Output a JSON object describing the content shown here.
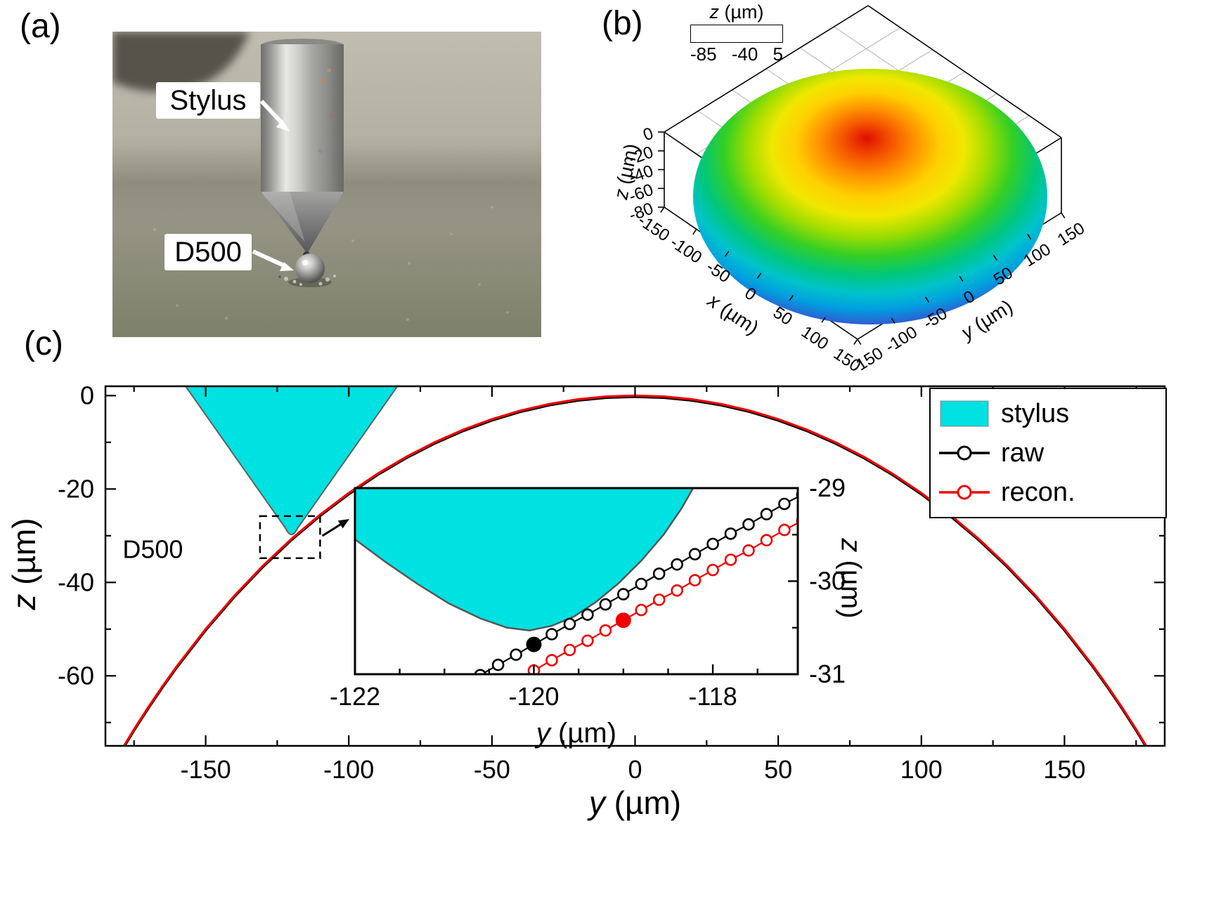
{
  "panels": {
    "a": {
      "label": "(a)",
      "annotations": {
        "stylus": "Stylus",
        "droplet": "D500"
      }
    },
    "b": {
      "label": "(b)",
      "colorbar": {
        "title_var": "z",
        "title_unit": "(µm)",
        "ticks": [
          -85,
          -40,
          5
        ]
      },
      "axes": {
        "z": {
          "var": "z",
          "unit": "(µm)",
          "ticks": [
            0,
            -20,
            -40,
            -60,
            -80
          ]
        },
        "x": {
          "var": "x",
          "unit": "(µm)",
          "ticks": [
            -150,
            -100,
            -50,
            0,
            50,
            100,
            150
          ]
        },
        "y": {
          "var": "y",
          "unit": "(µm)",
          "ticks": [
            -150,
            -100,
            -50,
            0,
            50,
            100,
            150
          ]
        }
      }
    },
    "c": {
      "label": "(c)",
      "xlabel": {
        "var": "y",
        "unit": "(µm)"
      },
      "ylabel": {
        "var": "z",
        "unit": "(µm)"
      },
      "xticks": [
        -150,
        -100,
        -50,
        0,
        50,
        100,
        150
      ],
      "yticks": [
        0,
        -20,
        -40,
        -60
      ],
      "xrange": [
        -185,
        185
      ],
      "zrange": [
        2,
        -75
      ],
      "droplet_label": "D500",
      "legend": [
        {
          "label": "stylus",
          "type": "patch",
          "color": "#00e1e1"
        },
        {
          "label": "raw",
          "type": "line-circle",
          "color": "#000000"
        },
        {
          "label": "recon.",
          "type": "line-circle",
          "color": "#ee0000"
        }
      ],
      "inset": {
        "xlabel": {
          "var": "y",
          "unit": "(µm)"
        },
        "ylabel": {
          "var": "z",
          "unit": "(µm)"
        },
        "xticks": [
          -122,
          -120,
          -118
        ],
        "zticks": [
          -29,
          -30,
          -31
        ],
        "xrange": [
          -122,
          -117.05
        ],
        "zrange": [
          -29,
          -31
        ]
      }
    }
  },
  "chart_data": [
    {
      "id": "droplet-3d",
      "type": "heatmap",
      "description": "3D surface of spherical-cap droplet D500; peak z ~ 5 µm at centre falling to z ~ -85 µm at rim radius ~ 150 µm; rainbow colormap blue=low red=high",
      "x_label": "x (µm)",
      "y_label": "y (µm)",
      "z_label": "z (µm)",
      "x_range": [
        -150,
        150
      ],
      "y_range": [
        -150,
        150
      ],
      "z_range": [
        -85,
        5
      ],
      "x_ticks": [
        -150,
        -100,
        -50,
        0,
        50,
        100,
        150
      ],
      "y_ticks": [
        -150,
        -100,
        -50,
        0,
        50,
        100,
        150
      ],
      "z_ticks": [
        0,
        -20,
        -40,
        -60,
        -80
      ],
      "colorbar": {
        "label": "z (µm)",
        "ticks": [
          -85,
          -40,
          5
        ]
      }
    },
    {
      "id": "profile-main",
      "type": "line",
      "xlabel": "y (µm)",
      "ylabel": "z (µm)",
      "x_range": [
        -185,
        185
      ],
      "z_display_range": [
        2,
        -75
      ],
      "profile_points": [
        [
          -185,
          -81.85
        ],
        [
          -180,
          -76.51
        ],
        [
          -175,
          -71.46
        ],
        [
          -170,
          -66.7
        ],
        [
          -165,
          -62.18
        ],
        [
          -160,
          -57.91
        ],
        [
          -150,
          -50
        ],
        [
          -140,
          -42.88
        ],
        [
          -130,
          -36.46
        ],
        [
          -120,
          -30.68
        ],
        [
          -110,
          -25.5
        ],
        [
          -100,
          -20.87
        ],
        [
          -90,
          -16.76
        ],
        [
          -80,
          -13.15
        ],
        [
          -70,
          -10
        ],
        [
          -60,
          -7.31
        ],
        [
          -50,
          -5.05
        ],
        [
          -40,
          -3.22
        ],
        [
          -30,
          -1.81
        ],
        [
          -20,
          -0.8
        ],
        [
          -10,
          -0.2
        ],
        [
          0,
          0
        ],
        [
          10,
          -0.2
        ],
        [
          20,
          -0.8
        ],
        [
          30,
          -1.81
        ],
        [
          40,
          -3.22
        ],
        [
          50,
          -5.05
        ],
        [
          60,
          -7.31
        ],
        [
          70,
          -10
        ],
        [
          80,
          -13.15
        ],
        [
          90,
          -16.76
        ],
        [
          100,
          -20.87
        ],
        [
          110,
          -25.5
        ],
        [
          120,
          -30.68
        ],
        [
          130,
          -36.46
        ],
        [
          140,
          -42.88
        ],
        [
          150,
          -50
        ],
        [
          160,
          -57.91
        ],
        [
          165,
          -62.18
        ],
        [
          170,
          -66.7
        ],
        [
          175,
          -71.46
        ],
        [
          180,
          -76.51
        ],
        [
          185,
          -81.85
        ]
      ],
      "series": [
        {
          "name": "raw",
          "color": "#000000",
          "points_ref": "profile_points"
        },
        {
          "name": "recon.",
          "color": "#ee0000",
          "points_ref": "profile_points"
        }
      ],
      "stylus": {
        "top_left": [
          -157,
          2
        ],
        "apex": [
          -120,
          -30.2
        ],
        "apex_halfwidth_um": 2,
        "top_right": [
          -83,
          2
        ],
        "fill": "#00e1e1"
      },
      "zoom_box": {
        "y": [
          -131,
          -110
        ],
        "z": [
          -25.8,
          -34.8
        ]
      },
      "annotation": "D500"
    },
    {
      "id": "profile-inset",
      "type": "scatter",
      "x_range": [
        -122,
        -117.05
      ],
      "z_range": [
        -29,
        -31
      ],
      "xticks": [
        -122,
        -120,
        -118
      ],
      "zticks": [
        -29,
        -30,
        -31
      ],
      "raw_points": [
        [
          -121.4,
          -31.45
        ],
        [
          -121.2,
          -31.34
        ],
        [
          -121.0,
          -31.23
        ],
        [
          -120.8,
          -31.12
        ],
        [
          -120.6,
          -31.01
        ],
        [
          -120.4,
          -30.9
        ],
        [
          -120.2,
          -30.79
        ],
        [
          -120.0,
          -30.68
        ],
        [
          -119.8,
          -30.57
        ],
        [
          -119.6,
          -30.46
        ],
        [
          -119.4,
          -30.36
        ],
        [
          -119.2,
          -30.25
        ],
        [
          -119.0,
          -30.14
        ],
        [
          -118.8,
          -30.03
        ],
        [
          -118.6,
          -29.92
        ],
        [
          -118.4,
          -29.82
        ],
        [
          -118.2,
          -29.71
        ],
        [
          -118.0,
          -29.6
        ],
        [
          -117.8,
          -29.49
        ],
        [
          -117.6,
          -29.39
        ],
        [
          -117.4,
          -29.28
        ],
        [
          -117.2,
          -29.17
        ],
        [
          -117.0,
          -29.07
        ],
        [
          -116.8,
          -28.96
        ]
      ],
      "recon_points": [
        [
          -121.4,
          -31.73
        ],
        [
          -121.2,
          -31.62
        ],
        [
          -121.0,
          -31.51
        ],
        [
          -120.8,
          -31.4
        ],
        [
          -120.6,
          -31.29
        ],
        [
          -120.4,
          -31.18
        ],
        [
          -120.2,
          -31.07
        ],
        [
          -120.0,
          -30.96
        ],
        [
          -119.8,
          -30.85
        ],
        [
          -119.6,
          -30.74
        ],
        [
          -119.4,
          -30.64
        ],
        [
          -119.2,
          -30.53
        ],
        [
          -119.0,
          -30.42
        ],
        [
          -118.8,
          -30.31
        ],
        [
          -118.6,
          -30.2
        ],
        [
          -118.4,
          -30.1
        ],
        [
          -118.2,
          -29.99
        ],
        [
          -118.0,
          -29.88
        ],
        [
          -117.8,
          -29.77
        ],
        [
          -117.6,
          -29.67
        ],
        [
          -117.4,
          -29.56
        ],
        [
          -117.2,
          -29.45
        ],
        [
          -117.0,
          -29.35
        ],
        [
          -116.8,
          -29.24
        ]
      ],
      "contact_point_raw": [
        -120.0,
        -30.68
      ],
      "contact_point_recon": [
        -119.0,
        -30.42
      ],
      "stylus_boundary": [
        [
          -122,
          -29.55
        ],
        [
          -121.65,
          -29.8
        ],
        [
          -121.3,
          -30.03
        ],
        [
          -120.95,
          -30.24
        ],
        [
          -120.6,
          -30.4
        ],
        [
          -120.3,
          -30.5
        ],
        [
          -120.05,
          -30.53
        ],
        [
          -119.8,
          -30.48
        ],
        [
          -119.55,
          -30.38
        ],
        [
          -119.3,
          -30.22
        ],
        [
          -119.05,
          -30.02
        ],
        [
          -118.8,
          -29.78
        ],
        [
          -118.55,
          -29.5
        ],
        [
          -118.35,
          -29.22
        ],
        [
          -118.22,
          -29.0
        ]
      ],
      "stylus_fill": "#00e1e1"
    }
  ]
}
